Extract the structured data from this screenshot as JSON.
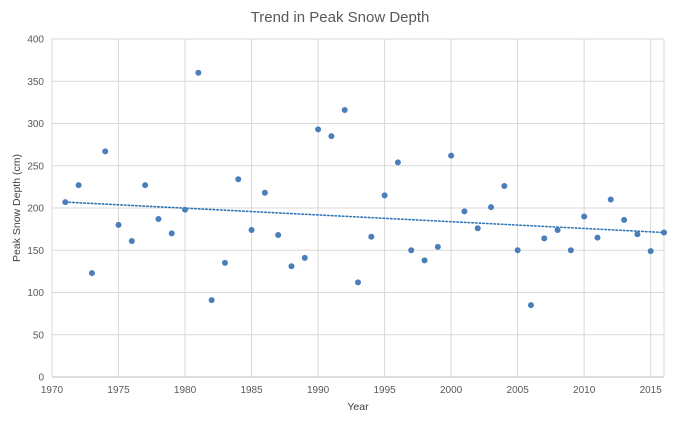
{
  "chart_data": {
    "type": "scatter",
    "title": "Trend in Peak Snow Depth",
    "xlabel": "Year",
    "ylabel": "Peak Snow Depth (cm)",
    "xlim": [
      1970,
      2016
    ],
    "ylim": [
      0,
      400
    ],
    "xticks": [
      1970,
      1975,
      1980,
      1985,
      1990,
      1995,
      2000,
      2005,
      2010,
      2015
    ],
    "yticks": [
      0,
      50,
      100,
      150,
      200,
      250,
      300,
      350,
      400
    ],
    "grid": "vertical and horizontal",
    "legend": "none",
    "series": [
      {
        "marker_color": "#4a7ebb",
        "x": [
          1971,
          1972,
          1973,
          1974,
          1975,
          1976,
          1977,
          1978,
          1979,
          1980,
          1981,
          1982,
          1983,
          1984,
          1985,
          1986,
          1987,
          1988,
          1989,
          1990,
          1991,
          1992,
          1993,
          1994,
          1995,
          1996,
          1997,
          1998,
          1999,
          2000,
          2001,
          2002,
          2003,
          2004,
          2005,
          2006,
          2007,
          2008,
          2009,
          2010,
          2011,
          2012,
          2013,
          2014,
          2015,
          2016
        ],
        "y": [
          207,
          227,
          123,
          267,
          180,
          161,
          227,
          187,
          170,
          198,
          360,
          91,
          135,
          234,
          174,
          218,
          168,
          131,
          141,
          293,
          285,
          316,
          112,
          166,
          215,
          254,
          150,
          138,
          154,
          262,
          196,
          176,
          201,
          226,
          150,
          85,
          164,
          174,
          150,
          190,
          165,
          210,
          186,
          169,
          149,
          171
        ]
      }
    ],
    "trendline": {
      "type": "linear",
      "style": "dotted",
      "color": "#2e75b6",
      "start": [
        1971,
        207
      ],
      "end": [
        2016,
        171
      ]
    }
  }
}
